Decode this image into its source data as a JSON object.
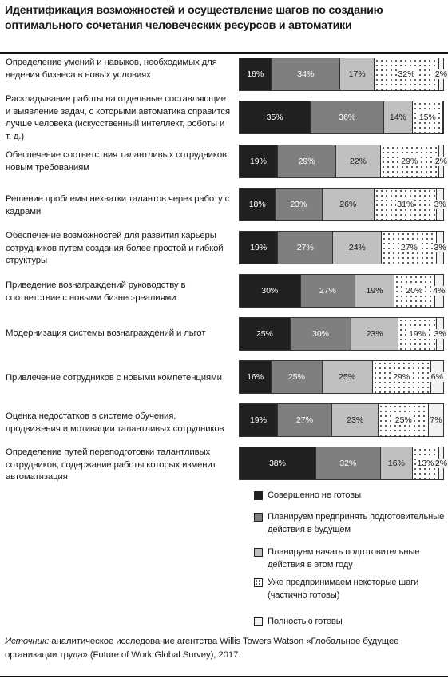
{
  "title": "Идентификация возможностей и осуществление шагов по созданию оптимального сочетания человеческих ресурсов и автоматики",
  "source": {
    "prefix": "Источник:",
    "text": " аналитическое исследование агентства Willis Towers Watson «Глобальное будущее организации труда» (Future of Work Global Survey), 2017."
  },
  "colors": {
    "not_ready": "#202020",
    "plan_future": "#7f7f7f",
    "plan_this_year": "#c0c0c0",
    "partially_ready": "dotted",
    "fully_ready": "#f2f2f2"
  },
  "chart_data": {
    "type": "bar",
    "orientation": "horizontal",
    "stacked": true,
    "categories": [
      "Определение умений и навыков, необходимых для ведения бизнеса в новых условиях",
      "Раскладывание работы на отдельные составляющие и выявление задач, с которыми автоматика справится лучше человека (искусственный интеллект, роботы и т. д.)",
      "Обеспечение соответствия талантливых сотрудников новым требованиям",
      "Решение проблемы нехватки талантов через работу с кадрами",
      "Обеспечение возможностей для развития карьеры сотрудников путем создания более простой и гибкой структуры",
      "Приведение вознаграждений руководству в соответствие с новыми бизнес-реалиями",
      "Модернизация системы вознаграждений и льгот",
      "Привлечение сотрудников с новыми компетенциями",
      "Оценка недостатков в системе обучения, продвижения и мотивации талантливых сотрудников",
      "Определение путей переподготовки талантливых сотрудников, содержание работы которых изменит автоматизация"
    ],
    "series": [
      {
        "name": "Совершенно не готовы",
        "values": [
          16,
          35,
          19,
          18,
          19,
          30,
          25,
          16,
          19,
          38
        ]
      },
      {
        "name": "Планируем предпринять подготовительные действия в будущем",
        "values": [
          34,
          36,
          29,
          23,
          27,
          27,
          30,
          25,
          27,
          32
        ]
      },
      {
        "name": "Планируем начать подготовительные действия в этом году",
        "values": [
          17,
          14,
          22,
          26,
          24,
          19,
          23,
          25,
          23,
          16
        ]
      },
      {
        "name": "Уже предпринимаем некоторые шаги (частично готовы)",
        "values": [
          32,
          15,
          29,
          31,
          27,
          20,
          19,
          29,
          25,
          13
        ]
      },
      {
        "name": "Полностью готовы",
        "values": [
          2,
          0,
          2,
          3,
          3,
          4,
          3,
          6,
          7,
          2
        ]
      }
    ],
    "value_labels": [
      [
        "16%",
        "34%",
        "17%",
        "32%",
        "2%"
      ],
      [
        "35%",
        "36%",
        "14%",
        "15%",
        ""
      ],
      [
        "19%",
        "29%",
        "22%",
        "29%",
        "2%"
      ],
      [
        "18%",
        "23%",
        "26%",
        "31%",
        "3%"
      ],
      [
        "19%",
        "27%",
        "24%",
        "27%",
        "3%"
      ],
      [
        "30%",
        "27%",
        "19%",
        "20%",
        "4%"
      ],
      [
        "25%",
        "30%",
        "23%",
        "19%",
        "3%"
      ],
      [
        "16%",
        "25%",
        "25%",
        "29%",
        "6%"
      ],
      [
        "19%",
        "27%",
        "23%",
        "25%",
        "7%"
      ],
      [
        "38%",
        "32%",
        "16%",
        "13%",
        "2%"
      ]
    ],
    "legend_position": "bottom-right",
    "grid": false
  }
}
